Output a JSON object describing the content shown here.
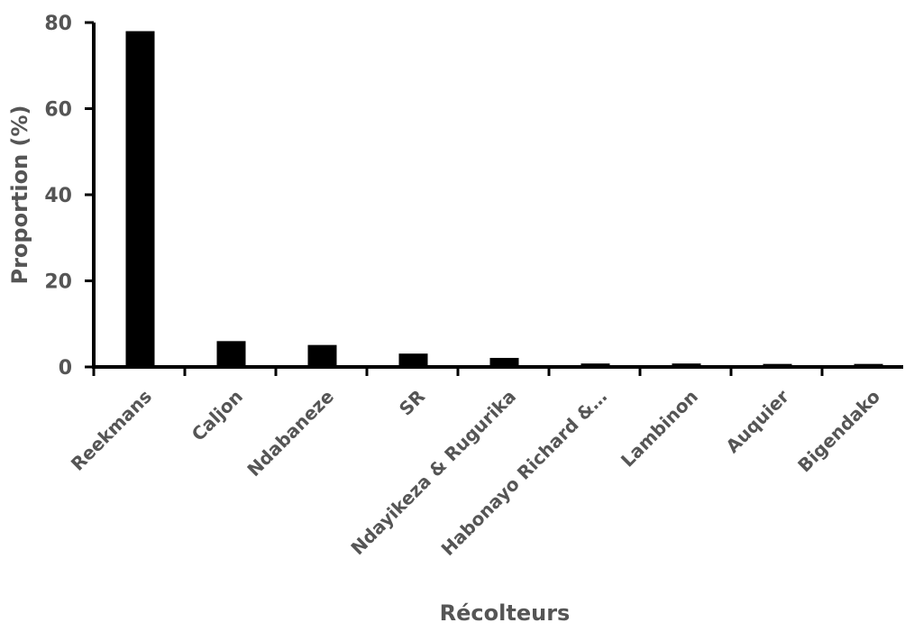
{
  "chart_data": {
    "type": "bar",
    "title": "",
    "xlabel": "Récolteurs",
    "ylabel": "Proportion (%)",
    "ylim": [
      0,
      80
    ],
    "yticks": [
      0,
      20,
      40,
      60,
      80
    ],
    "categories": [
      "Reekmans",
      "Caljon",
      "Ndabaneze",
      "SR",
      "Ndayikeza & Rugurika",
      "Habonayo Richard &…",
      "Lambinon",
      "Auquier",
      "Bigendako"
    ],
    "values": [
      78,
      6,
      5.1,
      3.1,
      2.1,
      0.8,
      0.8,
      0.7,
      0.7
    ],
    "bar_color": "#000000",
    "axis_color": "#000000",
    "text_color": "#555555",
    "grid": false
  }
}
